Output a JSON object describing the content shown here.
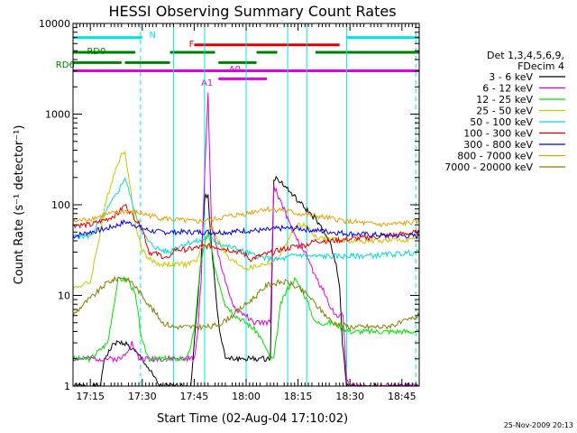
{
  "chart_data": {
    "type": "line",
    "title": "HESSI Observing Summary Count Rates",
    "xlabel": "Start Time (02-Aug-04 17:10:02)",
    "ylabel": "Count Rate (s⁻¹ detector⁻¹)",
    "y_scale": "log",
    "ylim": [
      1,
      10000
    ],
    "xlim_minutes_after_17_10_02": [
      0,
      100
    ],
    "y_ticks": [
      "1",
      "10",
      "100",
      "1000",
      "10000"
    ],
    "x_ticks": [
      {
        "label": "17:15",
        "t": 5
      },
      {
        "label": "17:30",
        "t": 20
      },
      {
        "label": "17:45",
        "t": 35
      },
      {
        "label": "18:00",
        "t": 50
      },
      {
        "label": "18:15",
        "t": 65
      },
      {
        "label": "18:30",
        "t": 80
      },
      {
        "label": "18:45",
        "t": 95
      }
    ],
    "legend_title": [
      "Det 1,3,4,5,6,9,",
      "FDecim 4"
    ],
    "legend_placement": "right",
    "grid": false,
    "flags": [
      {
        "label": "N",
        "color": "#00e5e5",
        "level": 7000,
        "segments": [
          [
            0,
            20
          ],
          [
            79,
            100
          ]
        ],
        "label_at": 22,
        "label_level": 7400
      },
      {
        "label": "F",
        "color": "#e00000",
        "level": 5800,
        "segments": [
          [
            35,
            77
          ]
        ],
        "label_at": 33.5,
        "label_level": 5900
      },
      {
        "label": "RD0",
        "color": "#008000",
        "level": 4800,
        "segments": [
          [
            0,
            18
          ],
          [
            28,
            41
          ],
          [
            53,
            59
          ],
          [
            70,
            100
          ]
        ],
        "label_at": 4,
        "label_level": 4900
      },
      {
        "label": "RD6",
        "color": "#008000",
        "level": 3700,
        "segments": [
          [
            0,
            14
          ],
          [
            15,
            28
          ],
          [
            42,
            53
          ]
        ],
        "label_at": -5,
        "label_level": 3500
      },
      {
        "label": "A0",
        "color": "#e000e0",
        "level": 3000,
        "segments": [
          [
            0,
            100
          ]
        ],
        "label_at": 45,
        "label_level": 3100
      },
      {
        "label": "A1",
        "color": "#e000e0",
        "level": 2450,
        "segments": [
          [
            42,
            56
          ]
        ],
        "label_at": 37,
        "label_level": 2200
      }
    ],
    "attenuator_lines_t": [
      0,
      19.5,
      29,
      38,
      50,
      62,
      67.5,
      79,
      99
    ],
    "series": [
      {
        "name": "3 - 6 keV",
        "color": "#000000",
        "x": [
          0,
          8,
          9,
          12,
          15,
          20,
          25,
          30,
          34,
          37,
          38,
          39,
          40,
          42,
          44,
          50,
          57,
          58,
          60,
          65,
          70,
          74,
          76,
          77,
          77.8,
          79,
          85,
          90,
          100
        ],
        "y": [
          1,
          1,
          2,
          3,
          3,
          2,
          1,
          1,
          1,
          25,
          120,
          130,
          35,
          5,
          2,
          2,
          2,
          200,
          180,
          110,
          70,
          40,
          22,
          13,
          3,
          1,
          1,
          1,
          1
        ]
      },
      {
        "name": "6 - 12 keV",
        "color": "#e000e0",
        "x": [
          0,
          10,
          14,
          17,
          19,
          22,
          25,
          30,
          35,
          36,
          37,
          38,
          39,
          40,
          43,
          45,
          47,
          50,
          52,
          55,
          57,
          58,
          60,
          62,
          64,
          66,
          68,
          70,
          72,
          74,
          76,
          77,
          78,
          79,
          80,
          100
        ],
        "y": [
          2,
          2,
          2,
          3,
          2,
          2,
          2,
          2,
          2,
          4,
          15,
          200,
          1700,
          60,
          20,
          10,
          7,
          6,
          5,
          5,
          5,
          160,
          110,
          70,
          45,
          35,
          25,
          16,
          12,
          8,
          6,
          6,
          6,
          1.2,
          1,
          1
        ]
      },
      {
        "name": "12 - 25 keV",
        "color": "#00e000",
        "x": [
          0,
          5,
          10,
          13,
          16,
          18,
          20,
          22,
          25,
          28,
          30,
          33,
          35,
          37,
          39,
          41,
          44,
          47,
          50,
          53,
          55,
          57,
          58,
          60,
          62,
          64,
          66,
          68,
          70,
          75,
          80,
          90,
          100
        ],
        "y": [
          2,
          2,
          3,
          15,
          15,
          10,
          3,
          2,
          2,
          2,
          2,
          2,
          4,
          25,
          50,
          20,
          8,
          6,
          5,
          4,
          3,
          2,
          2,
          8,
          12,
          15,
          12,
          8,
          5,
          5,
          4,
          4,
          4
        ]
      },
      {
        "name": "25 - 50 keV",
        "color": "#c8c800",
        "x": [
          0,
          5,
          10,
          13,
          15,
          18,
          20,
          22,
          25,
          28,
          29,
          33,
          36,
          38,
          40,
          42,
          45,
          48,
          50,
          51,
          55,
          57,
          59,
          62,
          64,
          66,
          68,
          70,
          72,
          75,
          80,
          90,
          100
        ],
        "y": [
          12,
          14,
          130,
          300,
          400,
          60,
          32,
          25,
          22,
          22,
          22,
          22,
          25,
          40,
          60,
          40,
          25,
          22,
          20,
          20,
          22,
          23,
          25,
          40,
          55,
          62,
          55,
          45,
          42,
          42,
          40,
          40,
          42
        ]
      },
      {
        "name": "50 - 100 keV",
        "color": "#00d8d8",
        "x": [
          0,
          5,
          10,
          13,
          15,
          18,
          20,
          22,
          25,
          28,
          29,
          33,
          37,
          39,
          41,
          44,
          47,
          50,
          52,
          55,
          58,
          60,
          62,
          64,
          66,
          68,
          70,
          75,
          80,
          90,
          100
        ],
        "y": [
          45,
          45,
          90,
          140,
          200,
          80,
          50,
          38,
          32,
          30,
          33,
          38,
          40,
          45,
          40,
          35,
          33,
          30,
          28,
          26,
          25,
          25,
          26,
          28,
          28,
          27,
          27,
          27,
          27,
          28,
          30
        ]
      },
      {
        "name": "100 - 300 keV",
        "color": "#e00000",
        "x": [
          0,
          5,
          10,
          13,
          15,
          18,
          20,
          22,
          25,
          28,
          29,
          33,
          38,
          40,
          42,
          45,
          48,
          50,
          51,
          55,
          58,
          60,
          62,
          64,
          66,
          68,
          70,
          72,
          75,
          80,
          90,
          100
        ],
        "y": [
          60,
          60,
          70,
          80,
          100,
          70,
          55,
          30,
          28,
          25,
          32,
          32,
          35,
          35,
          34,
          32,
          30,
          28,
          25,
          28,
          30,
          32,
          33,
          35,
          35,
          37,
          40,
          40,
          40,
          42,
          45,
          50
        ]
      },
      {
        "name": "300 - 800 keV",
        "color": "#0000e0",
        "x": [
          0,
          5,
          10,
          13,
          15,
          18,
          20,
          22,
          25,
          30,
          35,
          40,
          45,
          50,
          55,
          60,
          65,
          70,
          75,
          80,
          90,
          100
        ],
        "y": [
          45,
          50,
          55,
          60,
          65,
          60,
          55,
          52,
          50,
          50,
          50,
          50,
          50,
          52,
          52,
          55,
          55,
          52,
          50,
          48,
          46,
          45
        ]
      },
      {
        "name": "800 - 7000 keV",
        "color": "#e8a000",
        "x": [
          0,
          5,
          10,
          15,
          20,
          25,
          30,
          35,
          40,
          45,
          50,
          55,
          60,
          65,
          70,
          75,
          80,
          85,
          90,
          95,
          100
        ],
        "y": [
          65,
          70,
          78,
          85,
          80,
          72,
          68,
          65,
          68,
          75,
          80,
          90,
          88,
          80,
          75,
          70,
          65,
          62,
          60,
          62,
          65
        ]
      },
      {
        "name": "7000 - 20000 keV",
        "color": "#808000",
        "x": [
          0,
          3,
          6,
          10,
          14,
          17,
          20,
          23,
          26,
          29,
          33,
          37,
          40,
          43,
          46,
          50,
          53,
          56,
          60,
          62,
          65,
          68,
          70,
          75,
          80,
          85,
          90,
          95,
          100
        ],
        "y": [
          6,
          8,
          10,
          14,
          16,
          14,
          10,
          7,
          5,
          4.5,
          4.5,
          4.5,
          4.5,
          5,
          6,
          8,
          10,
          13,
          14,
          14,
          12,
          10,
          8,
          5,
          4.5,
          4.5,
          4.5,
          5,
          6
        ]
      }
    ]
  },
  "footer": {
    "date_stamp": "25-Nov-2009 20:13"
  }
}
